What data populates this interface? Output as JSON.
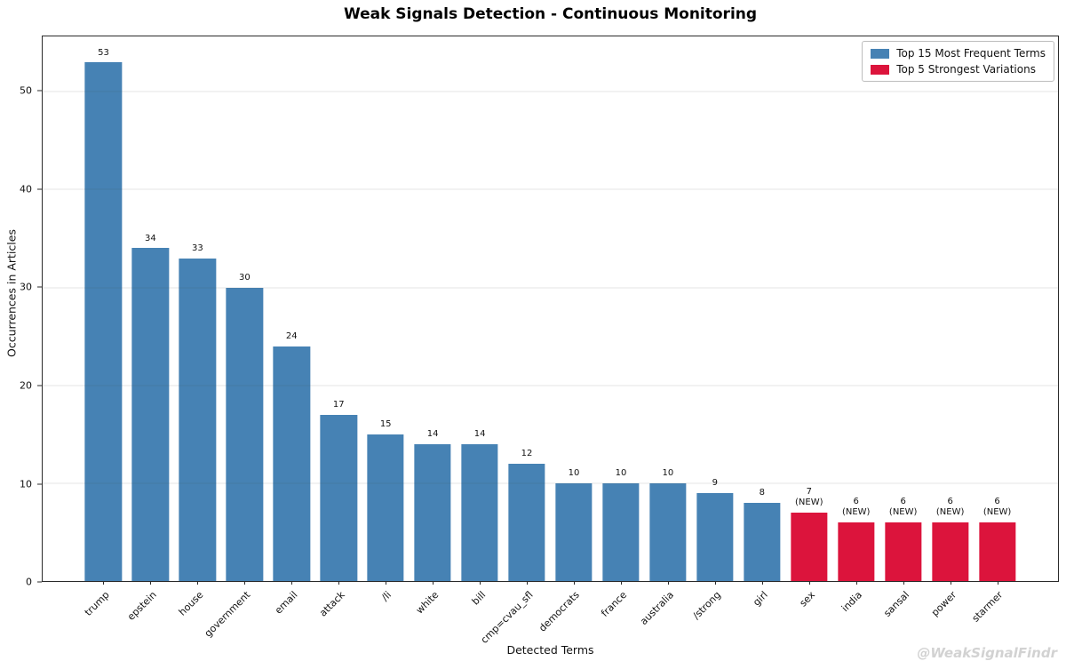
{
  "title": "Weak Signals Detection - Continuous Monitoring",
  "watermark": "@WeakSignalFindr",
  "colors": {
    "frequent": "#4682B4",
    "new": "#DC143C",
    "spine": "#2a2a2a",
    "watermark": "#d2d2d2"
  },
  "chart_data": {
    "type": "bar",
    "title": "Weak Signals Detection - Continuous Monitoring",
    "xlabel": "Detected Terms",
    "ylabel": "Occurrences in Articles",
    "ylim": [
      0,
      55.65
    ],
    "yticks": [
      0,
      10,
      20,
      30,
      40,
      50
    ],
    "grid": "horizontal",
    "legend_position": "upper right",
    "legend": [
      {
        "label": "Top 15 Most Frequent Terms",
        "color_key": "frequent"
      },
      {
        "label": "Top 5 Strongest Variations",
        "color_key": "new"
      }
    ],
    "categories": [
      "trump",
      "epstein",
      "house",
      "government",
      "email",
      "attack",
      "/li",
      "white",
      "bill",
      "cmp=cvau_sfl",
      "democrats",
      "france",
      "australia",
      "/strong",
      "girl",
      "sex",
      "india",
      "sansal",
      "power",
      "starmer"
    ],
    "series": [
      {
        "name": "Top 15 Most Frequent Terms",
        "color": "#4682B4",
        "terms": [
          "trump",
          "epstein",
          "house",
          "government",
          "email",
          "attack",
          "/li",
          "white",
          "bill",
          "cmp=cvau_sfl",
          "democrats",
          "france",
          "australia",
          "/strong",
          "girl"
        ],
        "values": [
          53,
          34,
          33,
          30,
          24,
          17,
          15,
          14,
          14,
          12,
          10,
          10,
          10,
          9,
          8
        ]
      },
      {
        "name": "Top 5 Strongest Variations",
        "color": "#DC143C",
        "terms": [
          "sex",
          "india",
          "sansal",
          "power",
          "starmer"
        ],
        "values": [
          7,
          6,
          6,
          6,
          6
        ],
        "annotation": "(NEW)"
      }
    ],
    "bars": [
      {
        "term": "trump",
        "value": 53,
        "group": "frequent",
        "label": "53"
      },
      {
        "term": "epstein",
        "value": 34,
        "group": "frequent",
        "label": "34"
      },
      {
        "term": "house",
        "value": 33,
        "group": "frequent",
        "label": "33"
      },
      {
        "term": "government",
        "value": 30,
        "group": "frequent",
        "label": "30"
      },
      {
        "term": "email",
        "value": 24,
        "group": "frequent",
        "label": "24"
      },
      {
        "term": "attack",
        "value": 17,
        "group": "frequent",
        "label": "17"
      },
      {
        "term": "/li",
        "value": 15,
        "group": "frequent",
        "label": "15"
      },
      {
        "term": "white",
        "value": 14,
        "group": "frequent",
        "label": "14"
      },
      {
        "term": "bill",
        "value": 14,
        "group": "frequent",
        "label": "14"
      },
      {
        "term": "cmp=cvau_sfl",
        "value": 12,
        "group": "frequent",
        "label": "12"
      },
      {
        "term": "democrats",
        "value": 10,
        "group": "frequent",
        "label": "10"
      },
      {
        "term": "france",
        "value": 10,
        "group": "frequent",
        "label": "10"
      },
      {
        "term": "australia",
        "value": 10,
        "group": "frequent",
        "label": "10"
      },
      {
        "term": "/strong",
        "value": 9,
        "group": "frequent",
        "label": "9"
      },
      {
        "term": "girl",
        "value": 8,
        "group": "frequent",
        "label": "8"
      },
      {
        "term": "sex",
        "value": 7,
        "group": "new",
        "label": "7\n(NEW)"
      },
      {
        "term": "india",
        "value": 6,
        "group": "new",
        "label": "6\n(NEW)"
      },
      {
        "term": "sansal",
        "value": 6,
        "group": "new",
        "label": "6\n(NEW)"
      },
      {
        "term": "power",
        "value": 6,
        "group": "new",
        "label": "6\n(NEW)"
      },
      {
        "term": "starmer",
        "value": 6,
        "group": "new",
        "label": "6\n(NEW)"
      }
    ]
  }
}
